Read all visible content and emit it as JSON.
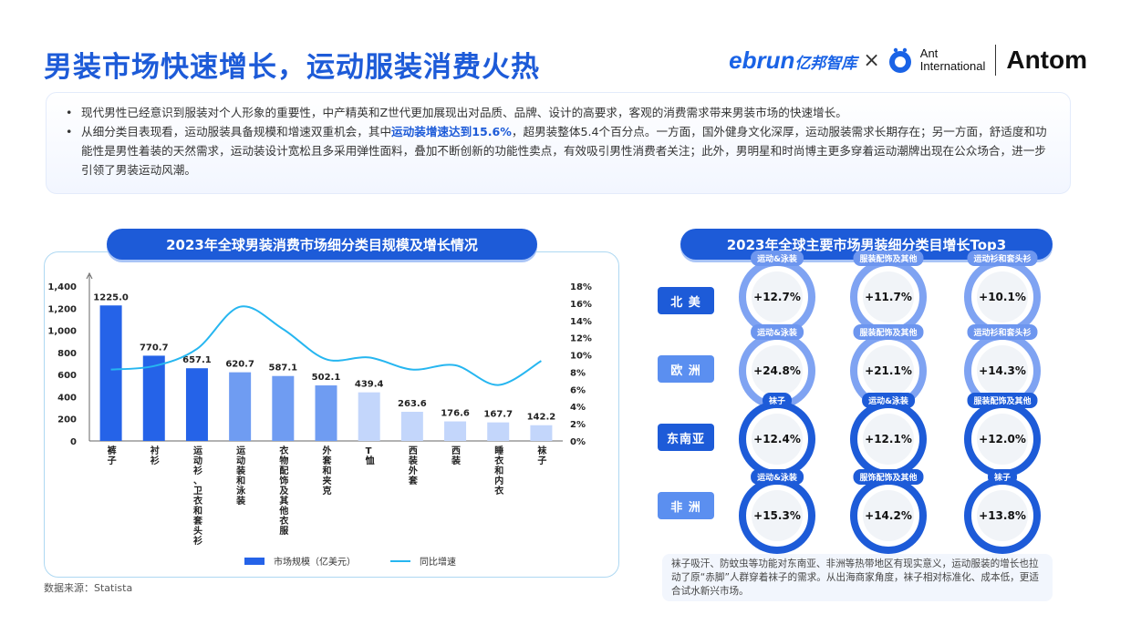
{
  "title": "男装市场快速增长，运动服装消费火热",
  "logos": {
    "ebrun": "ebrun",
    "ebrun_cn": "亿邦智库",
    "times": "×",
    "ant_line1": "Ant",
    "ant_line2": "International",
    "antom": "Antom"
  },
  "intro": {
    "b1": "现代男性已经意识到服装对个人形象的重要性，中产精英和Z世代更加展现出对品质、品牌、设计的高要求，客观的消费需求带来男装市场的快速增长。",
    "b2_pre": "从细分类目表现看，运动服装具备规模和增速双重机会，其中",
    "b2_hl": "运动装增速达到15.6%",
    "b2_post": "，超男装整体5.4个百分点。一方面，国外健身文化深厚，运动服装需求长期存在；另一方面，舒适度和功能性是男性着装的天然需求，运动装设计宽松且多采用弹性面料，叠加不断创新的功能性卖点，有效吸引男性消费者关注；此外，男明星和时尚博主更多穿着运动潮牌出现在公众场合，进一步引领了男装运动风潮。"
  },
  "left_title": "2023年全球男装消费市场细分类目规模及增长情况",
  "right_title": "2023年全球主要市场男装细分类目增长Top3",
  "chart_data": {
    "type": "bar",
    "title": "2023年全球男装消费市场细分类目规模及增长情况",
    "categories": [
      "裤子",
      "衬衫",
      "运动衫、卫衣和套头衫",
      "运动装和泳装",
      "衣物配饰及其他衣服",
      "外套和夹克",
      "T恤",
      "西装外套",
      "西装",
      "睡衣和内衣",
      "袜子"
    ],
    "series": [
      {
        "name": "市场规模（亿美元）",
        "values": [
          1225.0,
          770.7,
          657.1,
          620.7,
          587.1,
          502.1,
          439.4,
          263.6,
          176.6,
          167.7,
          142.2
        ],
        "value_labels": [
          "1225.0",
          "770.7",
          "657.1",
          "620.7",
          "587.1",
          "502.1",
          "439.4",
          "263.6",
          "176.6",
          "167.7",
          "142.2"
        ],
        "axis": "left"
      },
      {
        "name": "同比增速",
        "values": [
          8.3,
          8.7,
          10.7,
          15.6,
          13.0,
          9.5,
          9.7,
          8.3,
          8.8,
          6.5,
          9.3
        ],
        "axis": "right",
        "type": "line"
      }
    ],
    "y_left": {
      "ylim": [
        0,
        1400
      ],
      "ticks": [
        "0",
        "200",
        "400",
        "600",
        "800",
        "1,000",
        "1,200",
        "1,400"
      ]
    },
    "y_right": {
      "ylim": [
        0,
        18
      ],
      "ticks": [
        "0%",
        "2%",
        "4%",
        "6%",
        "8%",
        "10%",
        "12%",
        "14%",
        "16%",
        "18%"
      ]
    },
    "bar_colors": [
      "#2563e8",
      "#2563e8",
      "#2563e8",
      "#6f9cf2",
      "#6f9cf2",
      "#6f9cf2",
      "#c3d6fb",
      "#c3d6fb",
      "#c3d6fb",
      "#c3d6fb",
      "#c3d6fb"
    ],
    "line_color": "#26b6f0",
    "legend_position": "bottom",
    "grid": false
  },
  "regions": [
    {
      "name": "北 美",
      "items": [
        {
          "tag": "运动&泳装",
          "value": "+12.7%"
        },
        {
          "tag": "服装配饰及其他",
          "value": "+11.7%"
        },
        {
          "tag": "运动衫和套头衫",
          "value": "+10.1%"
        }
      ]
    },
    {
      "name": "欧 洲",
      "items": [
        {
          "tag": "运动&泳装",
          "value": "+24.8%"
        },
        {
          "tag": "服装配饰及其他",
          "value": "+21.1%"
        },
        {
          "tag": "运动衫和套头衫",
          "value": "+14.3%"
        }
      ]
    },
    {
      "name": "东南亚",
      "items": [
        {
          "tag": "袜子",
          "value": "+12.4%"
        },
        {
          "tag": "运动&泳装",
          "value": "+12.1%"
        },
        {
          "tag": "服装配饰及其他",
          "value": "+12.0%"
        }
      ]
    },
    {
      "name": "非 洲",
      "items": [
        {
          "tag": "运动&泳装",
          "value": "+15.3%"
        },
        {
          "tag": "服饰配饰及其他",
          "value": "+14.2%"
        },
        {
          "tag": "袜子",
          "value": "+13.8%"
        }
      ]
    }
  ],
  "note": "袜子吸汗、防蚊虫等功能对东南亚、非洲等热带地区有现实意义，运动服装的增长也拉动了原“赤脚”人群穿着袜子的需求。从出海商家角度，袜子相对标准化、成本低，更适合试水新兴市场。",
  "source": "数据来源：Statista",
  "colors": {
    "brand_blue": "#1d5bd8",
    "light_blue": "#7fa3f2",
    "line_cyan": "#26b6f0"
  }
}
